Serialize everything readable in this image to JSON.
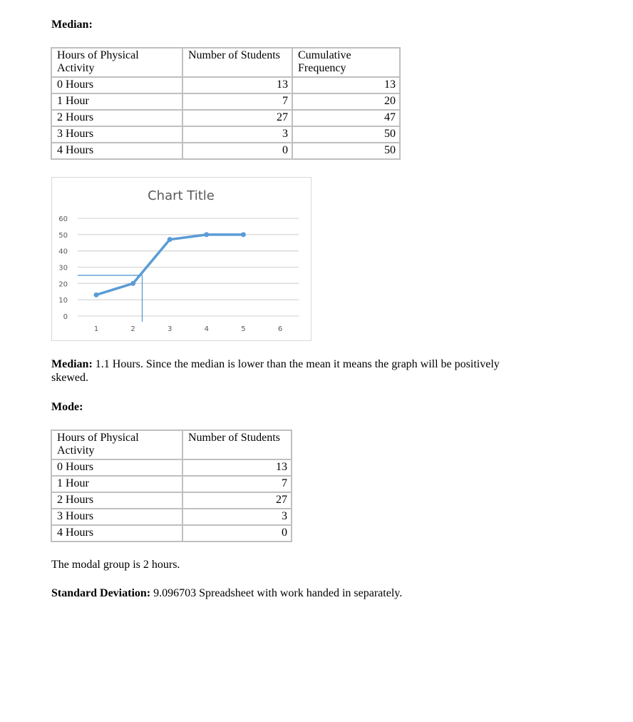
{
  "median_heading": "Median:",
  "table1": {
    "headers": [
      "Hours of Physical Activity",
      "Number of Students",
      "Cumulative Frequency"
    ],
    "rows": [
      [
        "0 Hours",
        "13",
        "13"
      ],
      [
        "1 Hour",
        "7",
        "20"
      ],
      [
        "2 Hours",
        "27",
        "47"
      ],
      [
        "3 Hours",
        "3",
        "50"
      ],
      [
        "4 Hours",
        "0",
        "50"
      ]
    ]
  },
  "chart_data": {
    "type": "line",
    "title": "Chart Title",
    "x": [
      1,
      2,
      3,
      4,
      5
    ],
    "x_ticks": [
      "1",
      "2",
      "3",
      "4",
      "5",
      "6"
    ],
    "y_ticks": [
      "0",
      "10",
      "20",
      "30",
      "40",
      "50",
      "60"
    ],
    "values": [
      13,
      20,
      47,
      50,
      50
    ],
    "ylim": [
      0,
      60
    ],
    "xlim": [
      0.5,
      6.5
    ],
    "grid": true,
    "series_color": "#5b9bd5",
    "median_guide": {
      "x": 2.25,
      "y": 25
    }
  },
  "median_text": {
    "label": "Median:",
    "body": " 1.1 Hours. Since the median is lower than the mean it means the graph will be positively skewed."
  },
  "mode_heading": "Mode:",
  "table2": {
    "headers": [
      "Hours of Physical Activity",
      "Number of Students"
    ],
    "rows": [
      [
        "0 Hours",
        "13"
      ],
      [
        "1 Hour",
        "7"
      ],
      [
        "2 Hours",
        "27"
      ],
      [
        "3 Hours",
        "3"
      ],
      [
        "4 Hours",
        "0"
      ]
    ]
  },
  "modal_text": "The modal group is 2 hours.",
  "sd_text": {
    "label": "Standard Deviation:",
    "body": " 9.096703 Spreadsheet with work handed in separately."
  }
}
